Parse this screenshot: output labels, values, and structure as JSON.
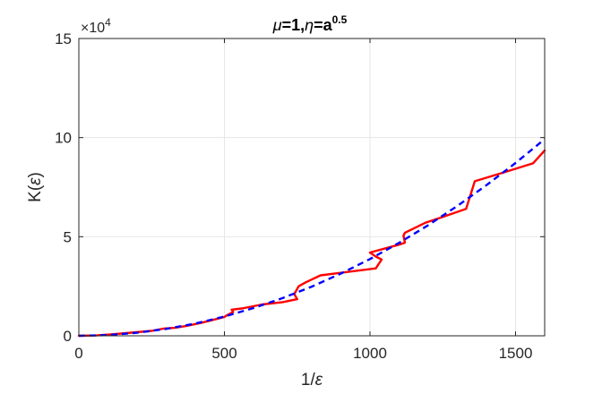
{
  "chart_data": {
    "type": "line",
    "title": {
      "mu_symbol": "μ",
      "mu_value": "=1,",
      "eta_symbol": "η",
      "eta_value": "=a",
      "eta_exponent": "0.5"
    },
    "xlabel": {
      "prefix": "1/",
      "symbol": "ε"
    },
    "ylabel": {
      "prefix": "K(",
      "symbol": "ε",
      "suffix": ")"
    },
    "y_exponent": {
      "prefix": "×10",
      "power": "4"
    },
    "xlim": [
      0,
      1600
    ],
    "ylim": [
      0,
      150000
    ],
    "x_ticks": [
      0,
      500,
      1000,
      1500
    ],
    "x_tick_labels": [
      "0",
      "500",
      "1000",
      "1500"
    ],
    "y_ticks": [
      0,
      50000,
      100000,
      150000
    ],
    "y_tick_labels": [
      "0",
      "5",
      "10",
      "15"
    ],
    "grid": true,
    "colors": {
      "red_series": "#ff0000",
      "blue_series": "#0000ff",
      "axes": "#262626",
      "grid": "#e6e6e6"
    },
    "series": [
      {
        "style": "solid",
        "color": "#ff0000",
        "points": [
          [
            0,
            0
          ],
          [
            60,
            200
          ],
          [
            120,
            800
          ],
          [
            180,
            1600
          ],
          [
            250,
            2500
          ],
          [
            290,
            3600
          ],
          [
            330,
            4000
          ],
          [
            370,
            5000
          ],
          [
            420,
            6500
          ],
          [
            460,
            8000
          ],
          [
            500,
            9500
          ],
          [
            510,
            10500
          ],
          [
            530,
            12000
          ],
          [
            525,
            13200
          ],
          [
            560,
            13800
          ],
          [
            630,
            15800
          ],
          [
            700,
            17000
          ],
          [
            750,
            18500
          ],
          [
            740,
            21000
          ],
          [
            755,
            25000
          ],
          [
            780,
            27000
          ],
          [
            830,
            30500
          ],
          [
            1020,
            34000
          ],
          [
            1040,
            38500
          ],
          [
            1020,
            40000
          ],
          [
            1000,
            42000
          ],
          [
            1100,
            46000
          ],
          [
            1120,
            47000
          ],
          [
            1115,
            50500
          ],
          [
            1120,
            52000
          ],
          [
            1190,
            57000
          ],
          [
            1250,
            60000
          ],
          [
            1330,
            64000
          ],
          [
            1360,
            78000
          ],
          [
            1450,
            82000
          ],
          [
            1560,
            87000
          ],
          [
            1600,
            93500
          ]
        ]
      },
      {
        "style": "dashed",
        "color": "#0000ff",
        "points": [
          [
            0,
            0
          ],
          [
            100,
            380
          ],
          [
            200,
            1550
          ],
          [
            300,
            3500
          ],
          [
            400,
            6200
          ],
          [
            500,
            9700
          ],
          [
            600,
            14000
          ],
          [
            700,
            19000
          ],
          [
            800,
            24800
          ],
          [
            900,
            31400
          ],
          [
            1000,
            38700
          ],
          [
            1100,
            46900
          ],
          [
            1200,
            55800
          ],
          [
            1300,
            65500
          ],
          [
            1400,
            76000
          ],
          [
            1500,
            87200
          ],
          [
            1600,
            99200
          ]
        ]
      }
    ]
  }
}
